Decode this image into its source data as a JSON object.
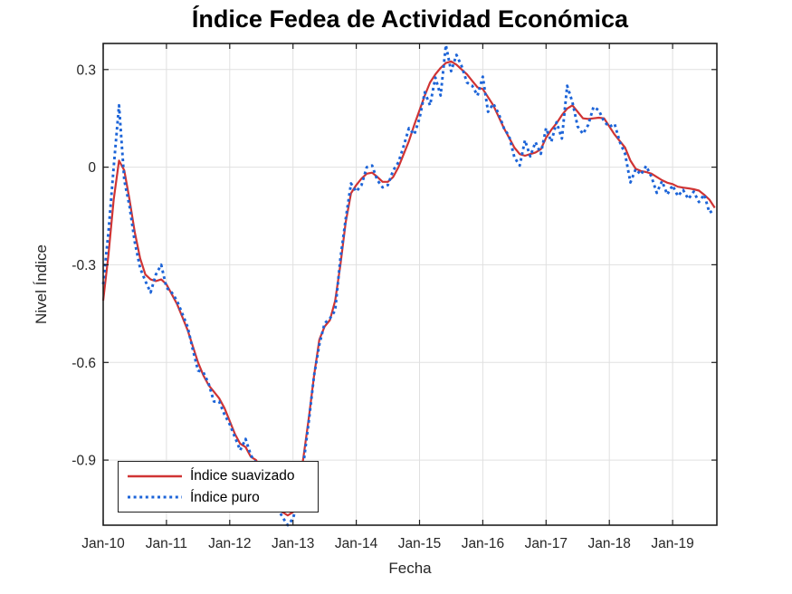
{
  "chart_data": {
    "type": "line",
    "title": "Índice Fedea de Actividad Económica",
    "xlabel": "Fecha",
    "ylabel": "Nivel Índice",
    "x_unit": "monthly observations, Jan-2010 through Sep-2019",
    "x_tick_labels": [
      "Jan-10",
      "Jan-11",
      "Jan-12",
      "Jan-13",
      "Jan-14",
      "Jan-15",
      "Jan-16",
      "Jan-17",
      "Jan-18",
      "Jan-19"
    ],
    "x_tick_months": [
      0,
      12,
      24,
      36,
      48,
      60,
      72,
      84,
      96,
      108
    ],
    "y_tick_labels": [
      "0.3",
      "0",
      "-0.3",
      "-0.6",
      "-0.9"
    ],
    "y_tick_values": [
      0.3,
      0,
      -0.3,
      -0.6,
      -0.9
    ],
    "ylim": [
      -1.1,
      0.38
    ],
    "xlim_months": [
      0,
      116.4
    ],
    "grid": true,
    "legend_position": "southwest",
    "colors": {
      "grid": "#e0e0e0",
      "axis": "#1f1f1f",
      "tick_label": "#262626",
      "background": "#ffffff"
    },
    "series": [
      {
        "name": "Índice suavizado",
        "color": "#d03434",
        "line_style": "solid",
        "values": [
          -0.41,
          -0.27,
          -0.1,
          0.02,
          -0.01,
          -0.1,
          -0.2,
          -0.28,
          -0.33,
          -0.345,
          -0.35,
          -0.345,
          -0.36,
          -0.39,
          -0.42,
          -0.46,
          -0.5,
          -0.55,
          -0.6,
          -0.64,
          -0.67,
          -0.69,
          -0.71,
          -0.74,
          -0.78,
          -0.82,
          -0.85,
          -0.86,
          -0.89,
          -0.9,
          -0.93,
          -0.97,
          -1.0,
          -1.03,
          -1.06,
          -1.07,
          -1.06,
          -1.0,
          -0.89,
          -0.77,
          -0.64,
          -0.53,
          -0.49,
          -0.47,
          -0.41,
          -0.3,
          -0.17,
          -0.08,
          -0.055,
          -0.035,
          -0.02,
          -0.017,
          -0.03,
          -0.045,
          -0.045,
          -0.03,
          0.0,
          0.04,
          0.08,
          0.13,
          0.175,
          0.22,
          0.26,
          0.285,
          0.305,
          0.32,
          0.325,
          0.315,
          0.3,
          0.285,
          0.265,
          0.245,
          0.24,
          0.215,
          0.19,
          0.155,
          0.12,
          0.09,
          0.06,
          0.04,
          0.035,
          0.04,
          0.045,
          0.055,
          0.09,
          0.115,
          0.135,
          0.16,
          0.18,
          0.19,
          0.17,
          0.15,
          0.148,
          0.15,
          0.152,
          0.15,
          0.125,
          0.1,
          0.08,
          0.06,
          0.02,
          -0.005,
          -0.012,
          -0.015,
          -0.02,
          -0.03,
          -0.04,
          -0.048,
          -0.052,
          -0.06,
          -0.063,
          -0.065,
          -0.068,
          -0.072,
          -0.085,
          -0.1,
          -0.125
        ]
      },
      {
        "name": "Índice puro",
        "color": "#1c64d8",
        "line_style": "dotted",
        "values": [
          -0.36,
          -0.2,
          0.0,
          0.19,
          -0.04,
          -0.12,
          -0.23,
          -0.31,
          -0.35,
          -0.385,
          -0.33,
          -0.3,
          -0.37,
          -0.385,
          -0.41,
          -0.45,
          -0.49,
          -0.56,
          -0.625,
          -0.63,
          -0.665,
          -0.72,
          -0.72,
          -0.76,
          -0.79,
          -0.83,
          -0.87,
          -0.835,
          -0.885,
          -0.91,
          -0.94,
          -0.985,
          -1.03,
          -1.045,
          -1.075,
          -1.1,
          -1.08,
          -1.02,
          -0.91,
          -0.78,
          -0.64,
          -0.545,
          -0.48,
          -0.465,
          -0.44,
          -0.28,
          -0.16,
          -0.05,
          -0.075,
          -0.055,
          0.0,
          0.005,
          -0.04,
          -0.062,
          -0.055,
          -0.01,
          0.015,
          0.065,
          0.12,
          0.1,
          0.15,
          0.23,
          0.19,
          0.275,
          0.22,
          0.375,
          0.295,
          0.345,
          0.31,
          0.26,
          0.25,
          0.22,
          0.278,
          0.17,
          0.195,
          0.165,
          0.12,
          0.095,
          0.03,
          0.005,
          0.083,
          0.033,
          0.077,
          0.041,
          0.12,
          0.078,
          0.138,
          0.088,
          0.25,
          0.2,
          0.125,
          0.102,
          0.13,
          0.185,
          0.175,
          0.14,
          0.124,
          0.133,
          0.077,
          0.041,
          -0.047,
          -0.006,
          -0.023,
          0.004,
          -0.03,
          -0.079,
          -0.043,
          -0.084,
          -0.056,
          -0.089,
          -0.07,
          -0.098,
          -0.075,
          -0.107,
          -0.084,
          -0.14,
          -0.13
        ]
      }
    ]
  }
}
